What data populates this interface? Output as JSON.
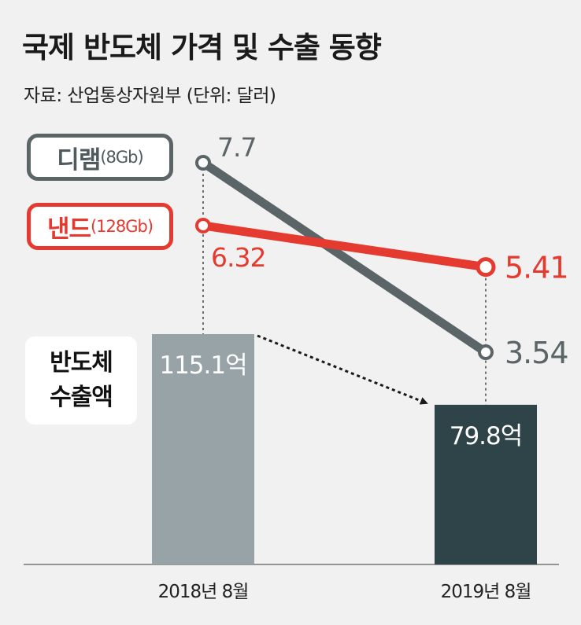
{
  "title": "국제 반도체 가격 및 수출 동향",
  "subtitle": "자료: 산업통상자원부  (단위: 달러)",
  "export_label_line1": "반도체",
  "export_label_line2": "수출액",
  "chart_data": {
    "type": "line+bar",
    "categories": [
      "2018년 8월",
      "2019년 8월"
    ],
    "series": [
      {
        "name": "디램",
        "spec": "(8Gb)",
        "values": [
          7.7,
          3.54
        ],
        "labels": [
          "7.7",
          "3.54"
        ],
        "color": "#5b6567"
      },
      {
        "name": "낸드",
        "spec": "(128Gb)",
        "values": [
          6.32,
          5.41
        ],
        "labels": [
          "6.32",
          "5.41"
        ],
        "color": "#e53a2f"
      }
    ],
    "bars": {
      "name": "반도체 수출액",
      "values": [
        115.1,
        79.8
      ],
      "labels": [
        "115.1억",
        "79.8억"
      ],
      "colors": [
        "#97a3a6",
        "#2f4448"
      ]
    }
  }
}
